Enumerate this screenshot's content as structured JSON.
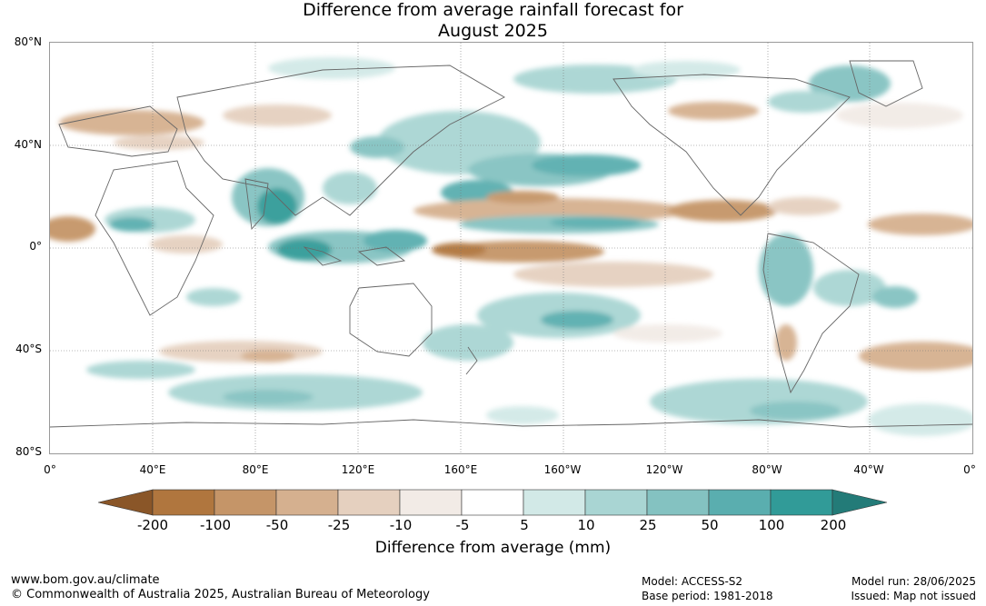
{
  "title": {
    "line1": "Difference from average rainfall forecast for",
    "line2": "August 2025"
  },
  "map": {
    "lat_ticks": [
      "80°N",
      "40°N",
      "0°",
      "40°S",
      "80°S"
    ],
    "lon_ticks": [
      "0°",
      "40°E",
      "80°E",
      "120°E",
      "160°E",
      "160°W",
      "120°W",
      "80°W",
      "40°W",
      "0°"
    ]
  },
  "colorbar": {
    "tick_labels": [
      "-200",
      "-100",
      "-50",
      "-25",
      "-10",
      "-5",
      "5",
      "10",
      "25",
      "50",
      "100",
      "200"
    ],
    "colors": [
      "#8a5628",
      "#b0763e",
      "#c59568",
      "#d5b08f",
      "#e5d0bf",
      "#f2ebe6",
      "#ffffff",
      "#d2e9e7",
      "#a9d5d3",
      "#84c2c1",
      "#5aaeaf",
      "#319b98",
      "#237b78"
    ],
    "title": "Difference from average (mm)"
  },
  "footer": {
    "url": "www.bom.gov.au/climate",
    "copyright": "© Commonwealth of Australia 2025, Australian Bureau of Meteorology",
    "model": "Model: ACCESS-S2",
    "base_period": "Base period: 1981-2018",
    "model_run": "Model run: 28/06/2025",
    "issued": "Issued: Map not issued"
  }
}
